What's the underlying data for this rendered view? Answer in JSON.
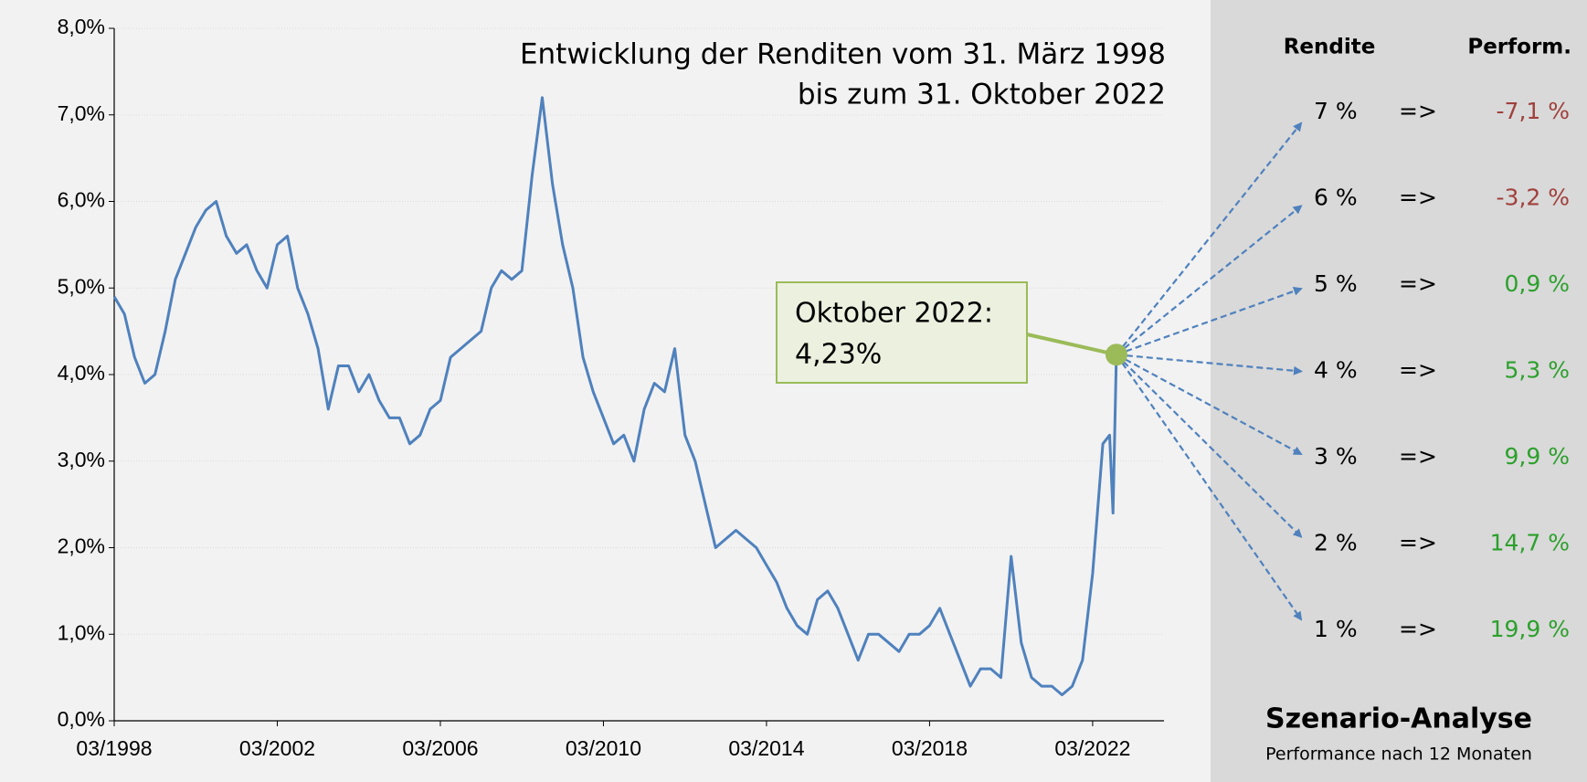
{
  "chart_data": {
    "type": "line",
    "title": [
      "Entwicklung der Renditen vom 31. März 1998",
      "bis zum 31. Oktober 2022"
    ],
    "x": [
      "03/1998",
      "06/1998",
      "09/1998",
      "12/1998",
      "03/1999",
      "06/1999",
      "09/1999",
      "12/1999",
      "03/2000",
      "06/2000",
      "09/2000",
      "12/2000",
      "03/2001",
      "06/2001",
      "09/2001",
      "12/2001",
      "03/2002",
      "06/2002",
      "09/2002",
      "12/2002",
      "03/2003",
      "06/2003",
      "09/2003",
      "12/2003",
      "03/2004",
      "06/2004",
      "09/2004",
      "12/2004",
      "03/2005",
      "06/2005",
      "09/2005",
      "12/2005",
      "03/2006",
      "06/2006",
      "09/2006",
      "12/2006",
      "03/2007",
      "06/2007",
      "09/2007",
      "12/2007",
      "03/2008",
      "06/2008",
      "09/2008",
      "12/2008",
      "03/2009",
      "06/2009",
      "09/2009",
      "12/2009",
      "03/2010",
      "06/2010",
      "09/2010",
      "12/2010",
      "03/2011",
      "06/2011",
      "09/2011",
      "12/2011",
      "03/2012",
      "06/2012",
      "09/2012",
      "12/2012",
      "03/2013",
      "06/2013",
      "09/2013",
      "12/2013",
      "03/2014",
      "06/2014",
      "09/2014",
      "12/2014",
      "03/2015",
      "06/2015",
      "09/2015",
      "12/2015",
      "03/2016",
      "06/2016",
      "09/2016",
      "12/2016",
      "03/2017",
      "06/2017",
      "09/2017",
      "12/2017",
      "03/2018",
      "06/2018",
      "09/2018",
      "12/2018",
      "03/2019",
      "06/2019",
      "09/2019",
      "12/2019",
      "03/2020",
      "06/2020",
      "09/2020",
      "12/2020",
      "03/2021",
      "06/2021",
      "09/2021",
      "12/2021",
      "03/2022",
      "06/2022",
      "08/2022",
      "09/2022",
      "10/2022"
    ],
    "series": [
      {
        "name": "Rendite",
        "color": "#4f81bd",
        "values": [
          4.9,
          4.7,
          4.2,
          3.9,
          4.0,
          4.5,
          5.1,
          5.4,
          5.7,
          5.9,
          6.0,
          5.6,
          5.4,
          5.5,
          5.2,
          5.0,
          5.5,
          5.6,
          5.0,
          4.7,
          4.3,
          3.6,
          4.1,
          4.1,
          3.8,
          4.0,
          3.7,
          3.5,
          3.5,
          3.2,
          3.3,
          3.6,
          3.7,
          4.2,
          4.3,
          4.4,
          4.5,
          5.0,
          5.2,
          5.1,
          5.2,
          6.3,
          7.2,
          6.2,
          5.5,
          5.0,
          4.2,
          3.8,
          3.5,
          3.2,
          3.3,
          3.0,
          3.6,
          3.9,
          3.8,
          4.3,
          3.3,
          3.0,
          2.5,
          2.0,
          2.1,
          2.2,
          2.1,
          2.0,
          1.8,
          1.6,
          1.3,
          1.1,
          1.0,
          1.4,
          1.5,
          1.3,
          1.0,
          0.7,
          1.0,
          1.0,
          0.9,
          0.8,
          1.0,
          1.0,
          1.1,
          1.3,
          1.0,
          0.7,
          0.4,
          0.6,
          0.6,
          0.5,
          1.9,
          0.9,
          0.5,
          0.4,
          0.4,
          0.3,
          0.4,
          0.7,
          1.7,
          3.2,
          3.3,
          2.4,
          4.23
        ]
      }
    ],
    "xlim": [
      "03/1998",
      "12/2023"
    ],
    "xticks": [
      "03/1998",
      "03/2002",
      "03/2006",
      "03/2010",
      "03/2014",
      "03/2018",
      "03/2022"
    ],
    "ylim": [
      0,
      8
    ],
    "yticks": [
      {
        "value": 0,
        "label": "0,0%"
      },
      {
        "value": 1,
        "label": "1,0%"
      },
      {
        "value": 2,
        "label": "2,0%"
      },
      {
        "value": 3,
        "label": "3,0%"
      },
      {
        "value": 4,
        "label": "4,0%"
      },
      {
        "value": 5,
        "label": "5,0%"
      },
      {
        "value": 6,
        "label": "6,0%"
      },
      {
        "value": 7,
        "label": "7,0%"
      },
      {
        "value": 8,
        "label": "8,0%"
      }
    ],
    "grid": true,
    "annotation": {
      "text": "Oktober 2022:",
      "x": "10/2022",
      "value": 4.23,
      "value_label": "4,23%",
      "color": "#9bbb59"
    },
    "scenarios": {
      "headers": [
        "Rendite",
        "Perform."
      ],
      "rows": [
        {
          "rendite": "7 %",
          "arrow": "=>",
          "performance": "-7,1 %",
          "color": "#a0403c"
        },
        {
          "rendite": "6 %",
          "arrow": "=>",
          "performance": "-3,2 %",
          "color": "#a0403c"
        },
        {
          "rendite": "5 %",
          "arrow": "=>",
          "performance": "0,9 %",
          "color": "#2ca02c"
        },
        {
          "rendite": "4 %",
          "arrow": "=>",
          "performance": "5,3 %",
          "color": "#2ca02c"
        },
        {
          "rendite": "3 %",
          "arrow": "=>",
          "performance": "9,9 %",
          "color": "#2ca02c"
        },
        {
          "rendite": "2 %",
          "arrow": "=>",
          "performance": "14,7 %",
          "color": "#2ca02c"
        },
        {
          "rendite": "1 %",
          "arrow": "=>",
          "performance": "19,9 %",
          "color": "#2ca02c"
        }
      ],
      "title": "Szenario-Analyse",
      "subtitle": "Performance nach 12 Monaten"
    }
  }
}
